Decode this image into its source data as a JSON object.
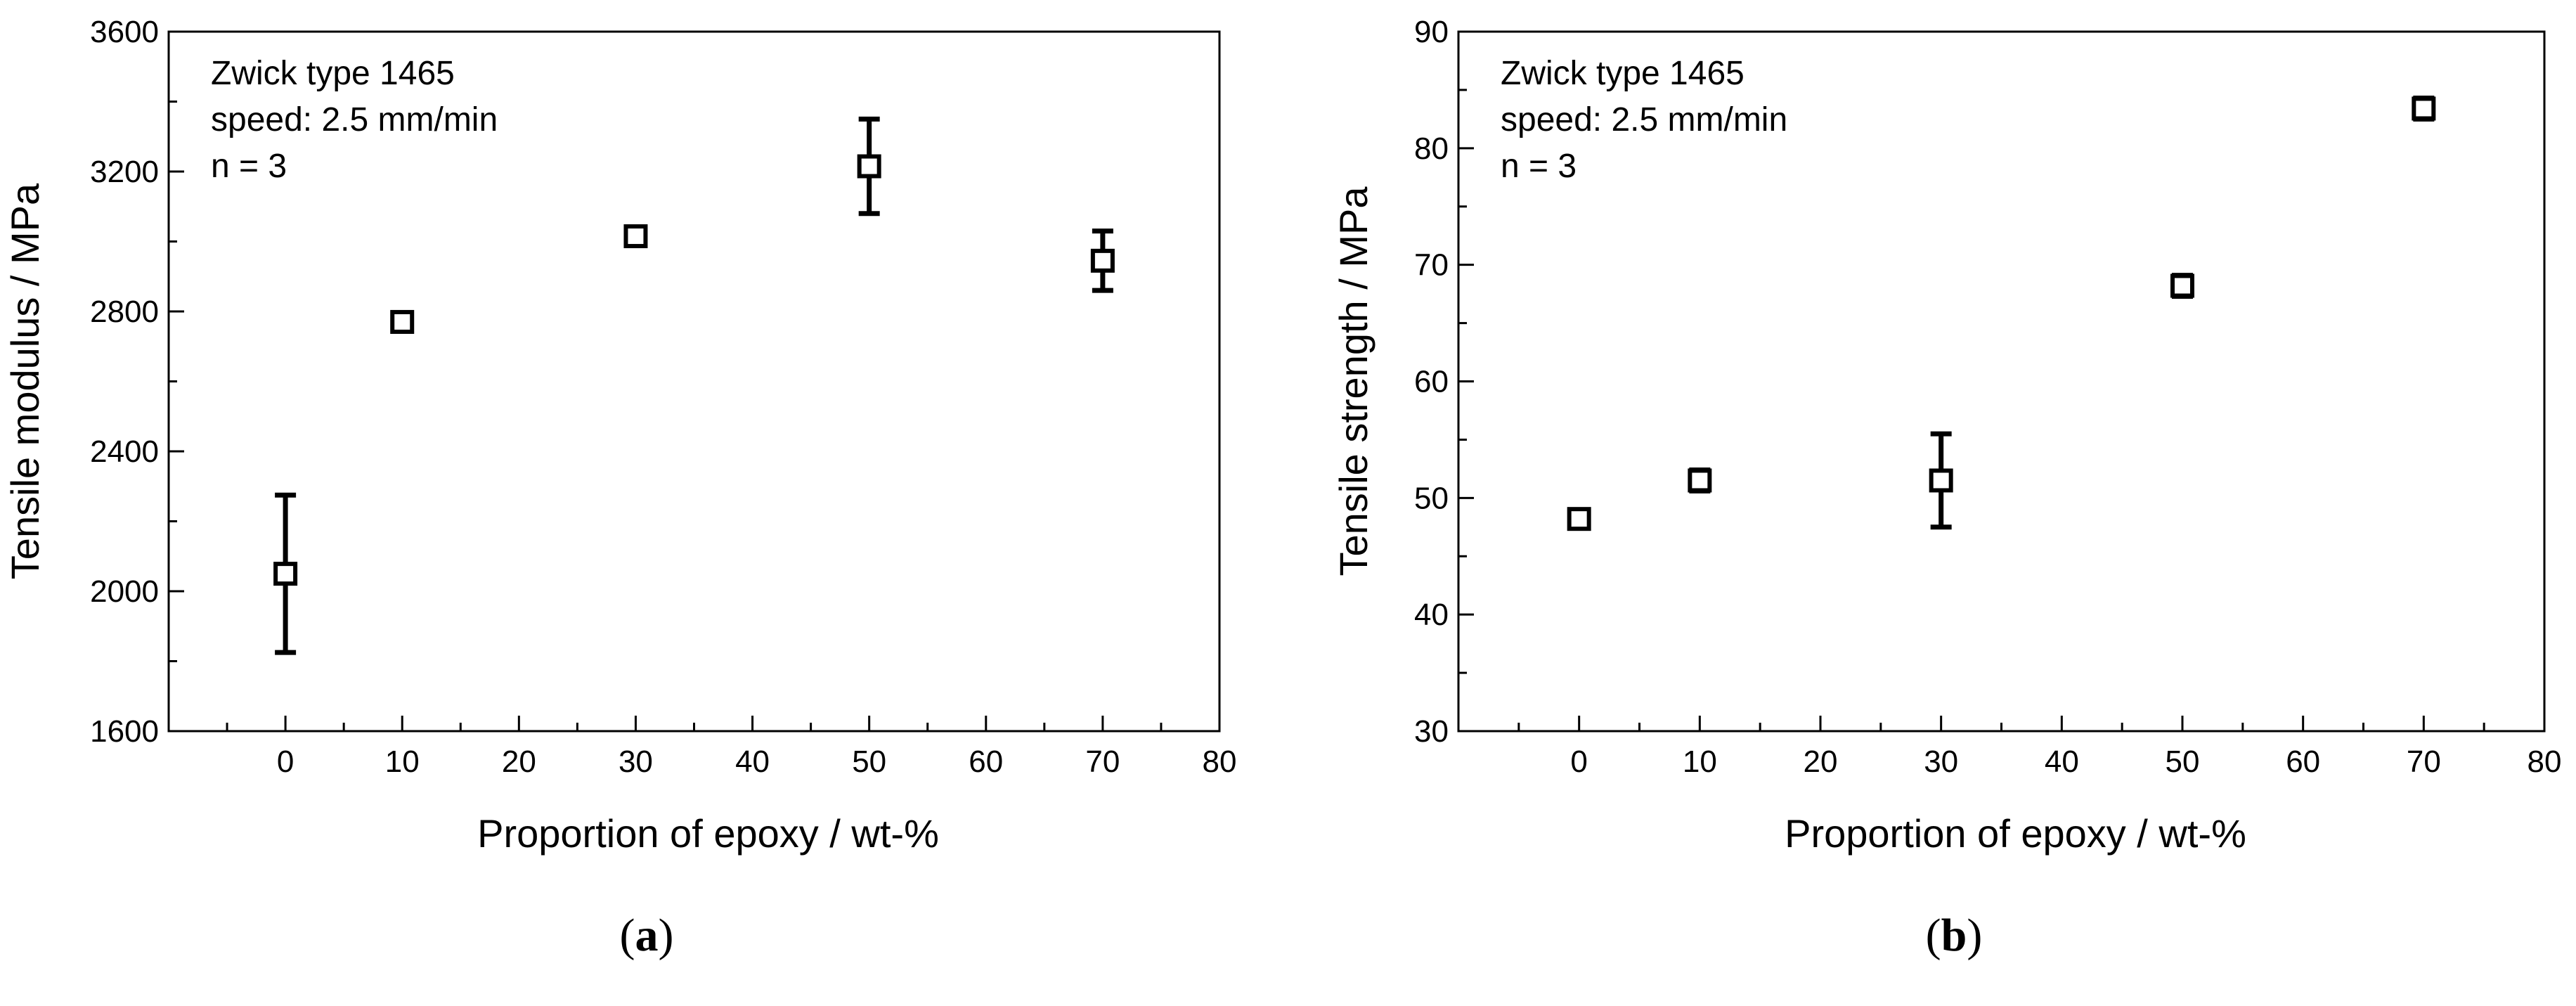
{
  "chart_data": [
    {
      "type": "scatter",
      "caption": "a",
      "xlabel": "Proportion of epoxy / wt-%",
      "ylabel": "Tensile modulus / MPa",
      "xlim": [
        -10,
        80
      ],
      "ylim": [
        1600,
        3600
      ],
      "xticks": [
        0,
        10,
        20,
        30,
        40,
        50,
        60,
        70,
        80
      ],
      "yticks": [
        1600,
        2000,
        2400,
        2800,
        3200,
        3600
      ],
      "annotations": [
        "Zwick type 1465",
        "speed: 2.5 mm/min",
        "n = 3"
      ],
      "legend": "none",
      "grid": false,
      "marker": "open-square",
      "points": [
        {
          "x": 0,
          "y": 2050,
          "error": 225
        },
        {
          "x": 10,
          "y": 2770,
          "error": 20
        },
        {
          "x": 30,
          "y": 3015,
          "error": 10
        },
        {
          "x": 50,
          "y": 3215,
          "error": 135
        },
        {
          "x": 70,
          "y": 2945,
          "error": 85
        }
      ]
    },
    {
      "type": "scatter",
      "caption": "b",
      "xlabel": "Proportion of epoxy / wt-%",
      "ylabel": "Tensile strength / MPa",
      "xlim": [
        -10,
        80
      ],
      "ylim": [
        30,
        90
      ],
      "xticks": [
        0,
        10,
        20,
        30,
        40,
        50,
        60,
        70,
        80
      ],
      "yticks": [
        30,
        40,
        50,
        60,
        70,
        80,
        90
      ],
      "annotations": [
        "Zwick type 1465",
        "speed: 2.5 mm/min",
        "n = 3"
      ],
      "legend": "none",
      "grid": false,
      "marker": "open-square",
      "points": [
        {
          "x": 0,
          "y": 48.2,
          "error": 0.4
        },
        {
          "x": 10,
          "y": 51.5,
          "error": 0.9
        },
        {
          "x": 30,
          "y": 51.5,
          "error": 4.0
        },
        {
          "x": 50,
          "y": 68.2,
          "error": 0.9
        },
        {
          "x": 70,
          "y": 83.4,
          "error": 0.9
        }
      ]
    }
  ]
}
